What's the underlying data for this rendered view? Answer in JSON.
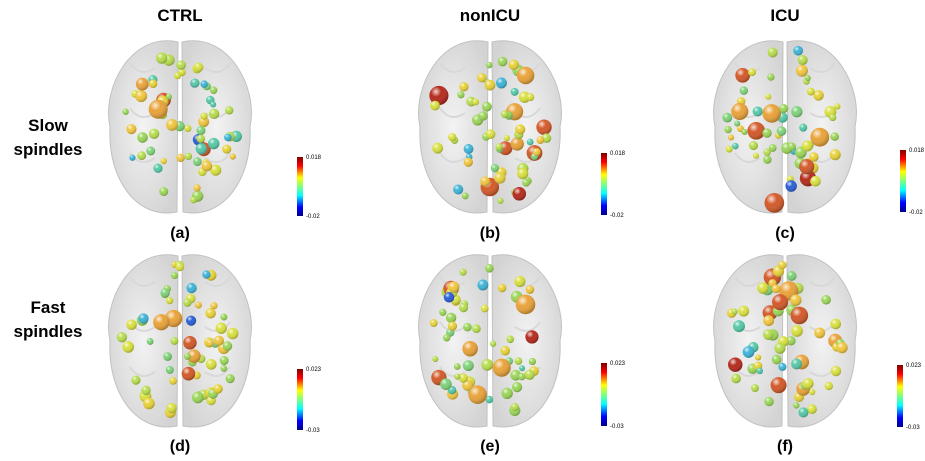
{
  "columns": [
    "CTRL",
    "nonICU",
    "ICU"
  ],
  "rows": [
    "Slow spindles",
    "Fast spindles"
  ],
  "panels": [
    {
      "label": "(a)",
      "colorbar": {
        "max": 0.018,
        "min": -0.02
      }
    },
    {
      "label": "(b)",
      "colorbar": {
        "max": 0.018,
        "min": -0.02
      }
    },
    {
      "label": "(c)",
      "colorbar": {
        "max": 0.018,
        "min": -0.02
      }
    },
    {
      "label": "(d)",
      "colorbar": {
        "max": 0.023,
        "min": -0.03
      }
    },
    {
      "label": "(e)",
      "colorbar": {
        "max": 0.023,
        "min": -0.03
      }
    },
    {
      "label": "(f)",
      "colorbar": {
        "max": 0.023,
        "min": -0.03
      }
    }
  ]
}
